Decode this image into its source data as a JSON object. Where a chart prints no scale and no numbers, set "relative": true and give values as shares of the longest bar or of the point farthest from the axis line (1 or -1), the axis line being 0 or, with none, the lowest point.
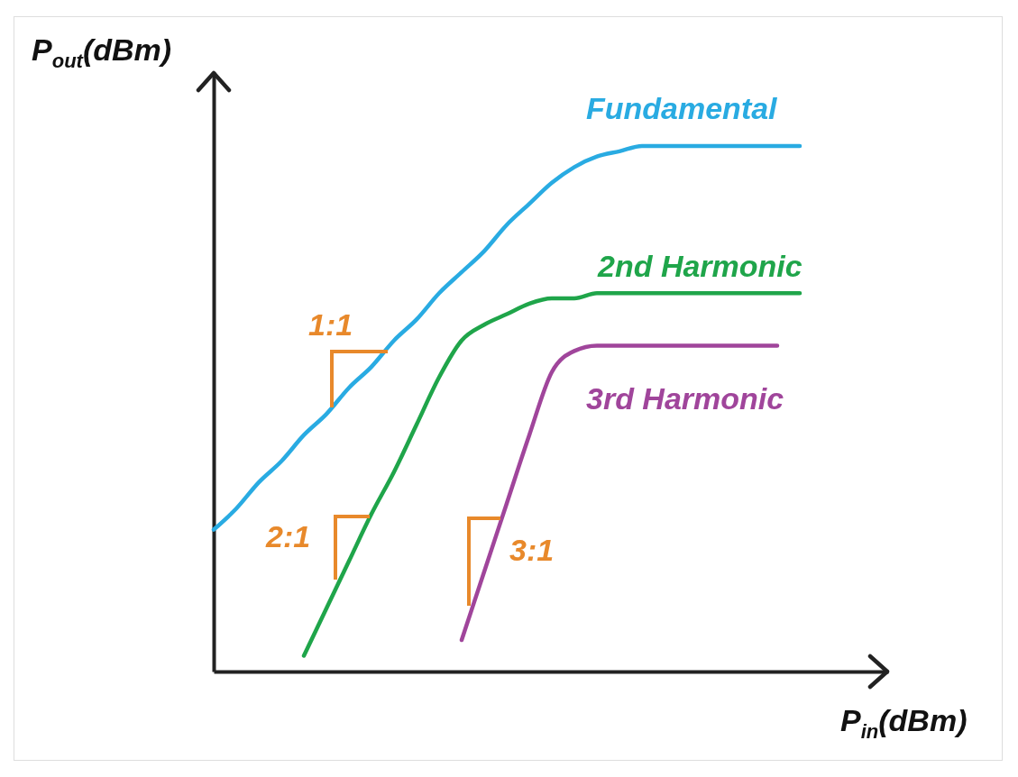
{
  "chart_data": {
    "type": "line",
    "relative": true,
    "xlabel": "P$_{in}$(dBm)",
    "ylabel": "P$_{out}$(dBm)",
    "legend": false,
    "line_style": "solid",
    "marker": "none",
    "categories": [
      null,
      null,
      null,
      null,
      null,
      null,
      null,
      null,
      null,
      null,
      null,
      null,
      null,
      null,
      null,
      null,
      null,
      null,
      null,
      null,
      null,
      null,
      null,
      null,
      null,
      null,
      null
    ],
    "series": [
      {
        "name": "Fundamental",
        "color": "#29abe2",
        "values": [
          0.27,
          0.31,
          0.36,
          0.4,
          0.45,
          0.49,
          0.54,
          0.58,
          0.63,
          0.67,
          0.72,
          0.76,
          0.8,
          0.85,
          0.89,
          0.93,
          0.96,
          0.98,
          0.99,
          1,
          1,
          1,
          1,
          1,
          1,
          1,
          1
        ]
      },
      {
        "name": "2nd Harmonic",
        "color": "#1fa54a",
        "values": [
          null,
          null,
          null,
          null,
          0.03,
          0.12,
          0.21,
          0.3,
          0.38,
          0.47,
          0.56,
          0.63,
          0.66,
          0.68,
          0.7,
          0.71,
          0.71,
          0.72,
          0.72,
          0.72,
          0.72,
          0.72,
          0.72,
          0.72,
          0.72,
          0.72,
          0.72
        ]
      },
      {
        "name": "3rd Harmonic",
        "color": "#a0459b",
        "values": [
          null,
          null,
          null,
          null,
          null,
          null,
          null,
          null,
          null,
          null,
          null,
          0.06,
          0.19,
          0.32,
          0.45,
          0.57,
          0.61,
          0.62,
          0.62,
          0.62,
          0.62,
          0.62,
          0.62,
          0.62,
          0.62,
          0.62,
          null
        ]
      }
    ],
    "annotations": [
      "1:1",
      "2:1",
      "3:1"
    ]
  }
}
